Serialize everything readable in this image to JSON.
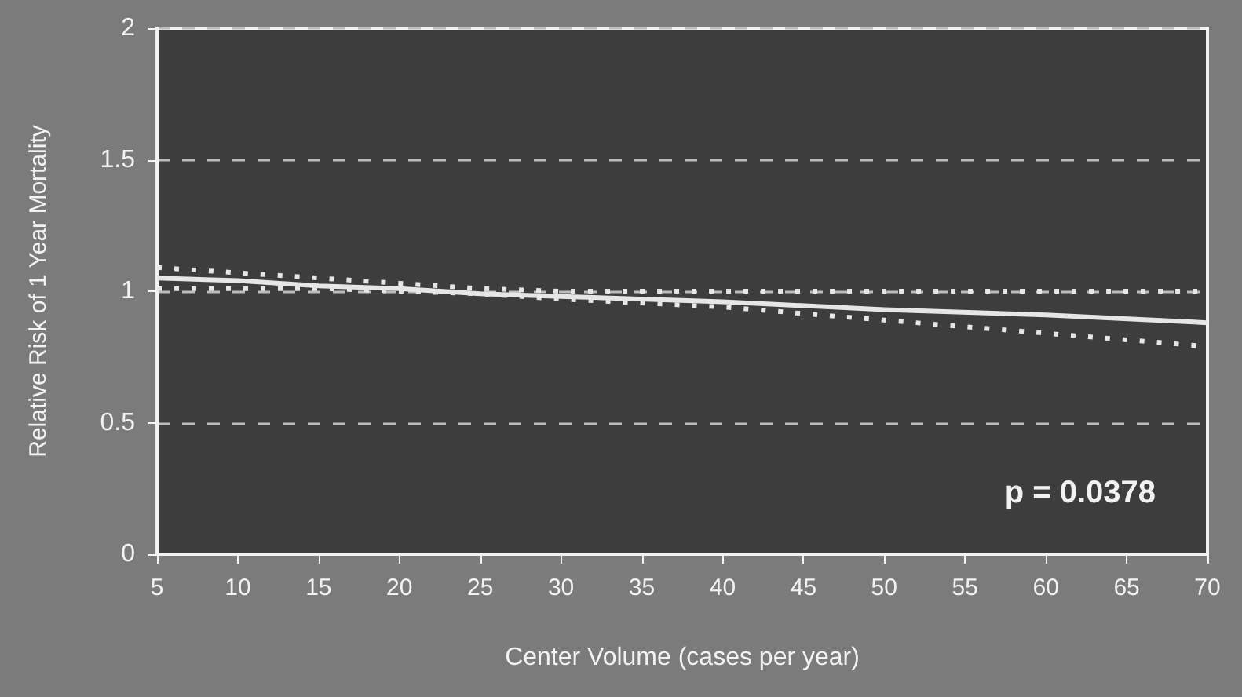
{
  "chart_data": {
    "type": "line",
    "xlabel": "Center Volume (cases per year)",
    "ylabel": "Relative Risk of 1 Year Mortality",
    "x": [
      5,
      10,
      15,
      20,
      25,
      30,
      40,
      50,
      60,
      70
    ],
    "series": [
      {
        "color": "#e6e6e6",
        "values": [
          1.05,
          1.04,
          1.02,
          1.01,
          0.99,
          0.98,
          0.96,
          0.93,
          0.91,
          0.88
        ]
      },
      {
        "color": "#e6e6e6",
        "line_style": "dotted",
        "values": [
          1.09,
          1.07,
          1.05,
          1.03,
          1.01,
          1.0,
          1.0,
          1.0,
          1.0,
          1.0
        ]
      },
      {
        "color": "#e6e6e6",
        "line_style": "dotted",
        "values": [
          1.01,
          1.01,
          1.01,
          1.0,
          0.99,
          0.97,
          0.94,
          0.89,
          0.84,
          0.79
        ]
      }
    ],
    "xlim": [
      5,
      70
    ],
    "xticks": [
      5,
      10,
      15,
      20,
      25,
      30,
      35,
      40,
      45,
      50,
      55,
      60,
      65,
      70
    ],
    "ylim": [
      0,
      2
    ],
    "yticks": [
      0,
      0.5,
      1,
      1.5,
      2
    ],
    "grid": "y",
    "marker": "none",
    "line_style": "solid",
    "annotations": [
      "p = 0.0378"
    ]
  }
}
